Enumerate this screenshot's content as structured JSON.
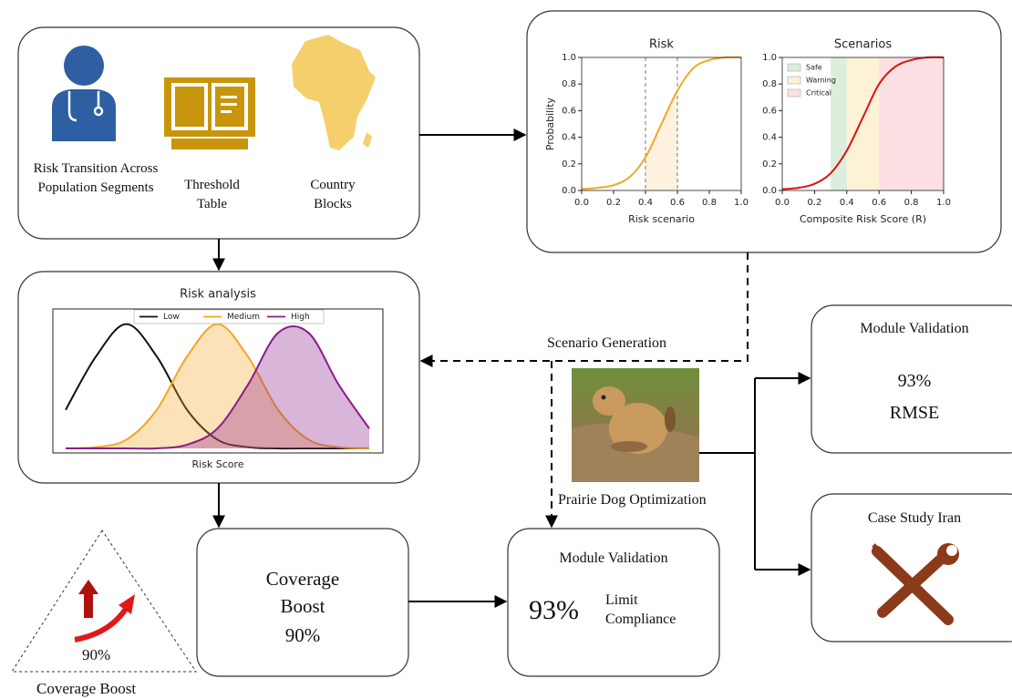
{
  "inputs": {
    "population": "Risk Transition Across Population Segments",
    "threshold": "Threshold Table",
    "country": "Country Blocks"
  },
  "risk_chart": {
    "type": "line",
    "title": "Risk",
    "y_label": "Probability",
    "x_label": "Risk scenario",
    "xlim": [
      0,
      1
    ],
    "ylim": [
      0,
      1
    ],
    "xticks": [
      {
        "value": 0,
        "label": "0.0"
      },
      {
        "value": 0.2,
        "label": "0.2"
      },
      {
        "value": 0.4,
        "label": "0.4"
      },
      {
        "value": 0.6,
        "label": "0.6"
      },
      {
        "value": 0.8,
        "label": "0.8"
      },
      {
        "value": 1,
        "label": "1.0"
      }
    ],
    "yticks": [
      {
        "value": 0,
        "label": "0.0"
      },
      {
        "value": 0.2,
        "label": "0.2"
      },
      {
        "value": 0.4,
        "label": "0.4"
      },
      {
        "value": 0.6,
        "label": "0.6"
      },
      {
        "value": 0.8,
        "label": "0.8"
      },
      {
        "value": 1,
        "label": "1.0"
      }
    ],
    "thresholds": [
      0.4,
      0.6
    ],
    "x": [
      0,
      0.1,
      0.2,
      0.3,
      0.4,
      0.5,
      0.6,
      0.7,
      0.8,
      0.9,
      1
    ],
    "series": [
      {
        "color": "#f5a623",
        "values": [
          0.01,
          0.02,
          0.04,
          0.1,
          0.25,
          0.5,
          0.75,
          0.92,
          0.98,
          1,
          1
        ]
      }
    ]
  },
  "scenario_chart": {
    "type": "line",
    "title": "Scenarios",
    "x_label": "Composite Risk Score (R)",
    "xlim": [
      0,
      1
    ],
    "ylim": [
      0,
      1
    ],
    "xticks": [
      {
        "value": 0,
        "label": "0.0"
      },
      {
        "value": 0.2,
        "label": "0.2"
      },
      {
        "value": 0.4,
        "label": "0.4"
      },
      {
        "value": 0.6,
        "label": "0.6"
      },
      {
        "value": 0.8,
        "label": "0.8"
      },
      {
        "value": 1,
        "label": "1.0"
      }
    ],
    "yticks": [
      {
        "value": 0,
        "label": "0.0"
      },
      {
        "value": 0.2,
        "label": "0.2"
      },
      {
        "value": 0.4,
        "label": "0.4"
      },
      {
        "value": 0.6,
        "label": "0.6"
      },
      {
        "value": 0.8,
        "label": "0.8"
      },
      {
        "value": 1,
        "label": "1.0"
      }
    ],
    "regions": [
      {
        "name": "Safe",
        "color": "#dcefdc",
        "range": [
          0.3,
          0.4
        ]
      },
      {
        "name": "Warning",
        "color": "#fdf1d6",
        "range": [
          0.4,
          0.6
        ]
      },
      {
        "name": "Critical",
        "color": "#fde0e3",
        "range": [
          0.6,
          1
        ]
      }
    ],
    "x": [
      0,
      0.1,
      0.2,
      0.3,
      0.4,
      0.5,
      0.6,
      0.7,
      0.8,
      0.9,
      1
    ],
    "series": [
      {
        "color": "#e01010",
        "values": [
          0.01,
          0.02,
          0.05,
          0.13,
          0.3,
          0.55,
          0.8,
          0.93,
          0.98,
          1,
          1
        ]
      }
    ]
  },
  "analysis_chart": {
    "type": "area",
    "title": "Risk analysis",
    "x_label": "Risk Score",
    "xlim": [
      0,
      1
    ],
    "ylim": [
      0,
      1.1
    ],
    "x": [
      0,
      0.1,
      0.2,
      0.3,
      0.4,
      0.5,
      0.6,
      0.7,
      0.8,
      0.9,
      1
    ],
    "series": [
      {
        "name": "Low",
        "color": "#111111",
        "filled": false,
        "values": [
          0.31,
          0.74,
          1,
          0.74,
          0.31,
          0.07,
          0.01,
          0,
          0,
          0,
          0
        ]
      },
      {
        "name": "Medium",
        "color": "#f5a623",
        "filled": true,
        "values": [
          0,
          0.01,
          0.07,
          0.31,
          0.74,
          1,
          0.74,
          0.31,
          0.07,
          0.01,
          0
        ]
      },
      {
        "name": "High",
        "color": "#8b1a8b",
        "filled": true,
        "values": [
          0,
          0,
          0,
          0,
          0.03,
          0.16,
          0.51,
          0.93,
          0.93,
          0.51,
          0.16
        ]
      }
    ]
  },
  "scenario_generation": "Scenario Generation",
  "optimizer": "Prairie Dog Optimization",
  "validation_rmse": {
    "title": "Module Validation",
    "value": "93%",
    "metric": "RMSE"
  },
  "case_study": {
    "title": "Case Study Iran"
  },
  "coverage": {
    "title": "Coverage Boost",
    "value": "90%"
  },
  "validation_limit": {
    "title": "Module Validation",
    "value": "93%",
    "metric": "Limit Compliance"
  },
  "triangle": {
    "value": "90%",
    "caption": "Coverage Boost"
  }
}
